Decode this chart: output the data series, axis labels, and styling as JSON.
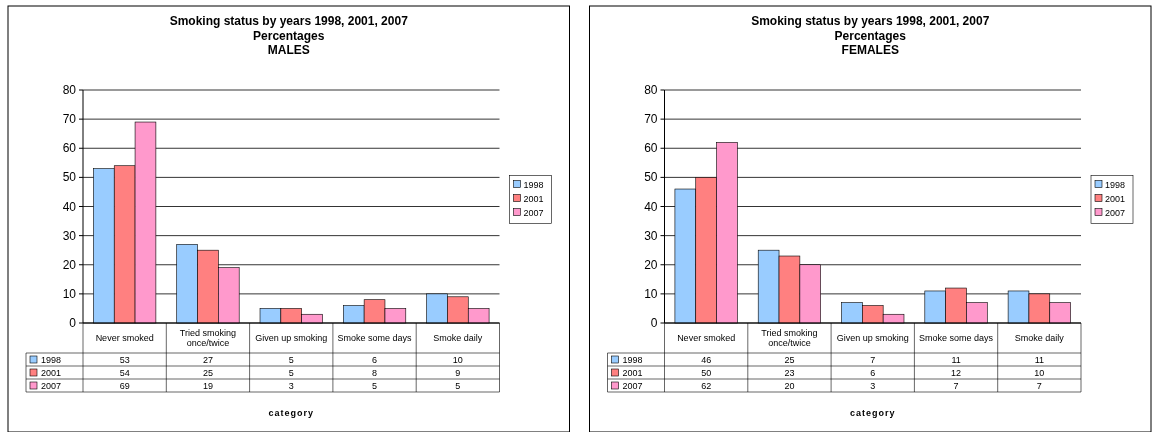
{
  "chart_data": [
    {
      "type": "bar",
      "title": "Smoking status by years 1998, 2001, 2007",
      "subtitle": "Percentages\nMALES",
      "xlabel": "category",
      "categories": [
        "Never smoked",
        "Tried smoking once/twice",
        "Given up smoking",
        "Smoke some days",
        "Smoke daily"
      ],
      "series": [
        {
          "name": "1998",
          "color": "#99ccff",
          "values": [
            53,
            27,
            5,
            6,
            10
          ]
        },
        {
          "name": "2001",
          "color": "#ff8080",
          "values": [
            54,
            25,
            5,
            8,
            9
          ]
        },
        {
          "name": "2007",
          "color": "#ff99cc",
          "values": [
            69,
            19,
            3,
            5,
            5
          ]
        }
      ],
      "ylim": [
        0,
        80
      ],
      "yticks": [
        0,
        10,
        20,
        30,
        40,
        50,
        60,
        70,
        80
      ],
      "grid": "y",
      "legend": "right",
      "data_labels": true
    },
    {
      "type": "bar",
      "title": "Smoking status by years 1998, 2001, 2007",
      "subtitle": "Percentages\nFEMALES",
      "xlabel": "category",
      "categories": [
        "Never smoked",
        "Tried smoking once/twice",
        "Given up smoking",
        "Smoke some days",
        "Smoke daily"
      ],
      "series": [
        {
          "name": "1998",
          "color": "#99ccff",
          "values": [
            46,
            25,
            7,
            11,
            11
          ]
        },
        {
          "name": "2001",
          "color": "#ff8080",
          "values": [
            50,
            23,
            6,
            12,
            10
          ]
        },
        {
          "name": "2007",
          "color": "#ff99cc",
          "values": [
            62,
            20,
            3,
            7,
            7
          ]
        }
      ],
      "ylim": [
        0,
        80
      ],
      "yticks": [
        0,
        10,
        20,
        30,
        40,
        50,
        60,
        70,
        80
      ],
      "grid": "y",
      "legend": "right",
      "data_labels": true
    }
  ]
}
